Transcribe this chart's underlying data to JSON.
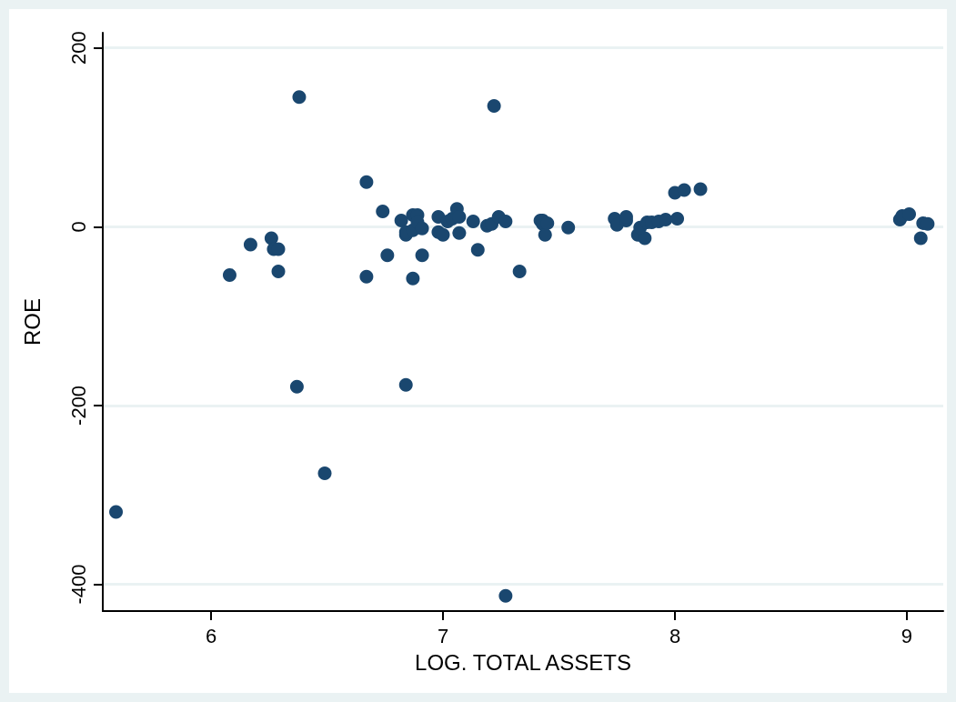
{
  "chart_data": {
    "type": "scatter",
    "xlabel": "LOG. TOTAL ASSETS",
    "ylabel": "ROE",
    "marker": "circle",
    "grid": "y",
    "xlim": [
      5.533,
      9.157
    ],
    "xticks": [
      6,
      7,
      8,
      9
    ],
    "ylim": [
      -430,
      217
    ],
    "yticks": [
      -400,
      -200,
      0,
      200
    ],
    "series": [
      {
        "color": "#1a476f",
        "x": [
          5.59,
          6.08,
          6.17,
          6.26,
          6.27,
          6.29,
          6.29,
          6.38,
          6.37,
          6.49,
          6.67,
          6.67,
          6.74,
          6.76,
          6.82,
          6.84,
          6.84,
          6.84,
          6.87,
          6.87,
          6.89,
          6.87,
          6.89,
          6.91,
          6.91,
          6.98,
          6.98,
          7.0,
          7.02,
          7.04,
          7.06,
          7.07,
          7.07,
          7.13,
          7.15,
          7.19,
          7.21,
          7.22,
          7.24,
          7.27,
          7.27,
          7.33,
          7.42,
          7.43,
          7.43,
          7.44,
          7.45,
          7.54,
          7.74,
          7.75,
          7.79,
          7.79,
          7.84,
          7.87,
          7.85,
          7.88,
          7.9,
          7.93,
          7.96,
          8.01,
          8.0,
          8.04,
          8.11,
          8.97,
          8.98,
          9.01,
          9.06,
          9.07,
          9.09
        ],
        "values": [
          -319,
          -54,
          -20,
          -13,
          -25,
          -25,
          -50,
          145,
          -179,
          -276,
          50,
          -56,
          17,
          -32,
          7,
          -9,
          -6,
          -177,
          -58,
          13,
          13,
          -4,
          5,
          -32,
          -2,
          11,
          -6,
          -9,
          6,
          9,
          20,
          11,
          -7,
          6,
          -26,
          1,
          3,
          135,
          11,
          6,
          -413,
          -50,
          7,
          3,
          7,
          -9,
          4,
          -1,
          9,
          2,
          7,
          11,
          -9,
          -13,
          -1,
          5,
          5,
          6,
          8,
          9,
          38,
          41,
          42,
          8,
          12,
          14,
          -13,
          4,
          3
        ]
      }
    ]
  }
}
